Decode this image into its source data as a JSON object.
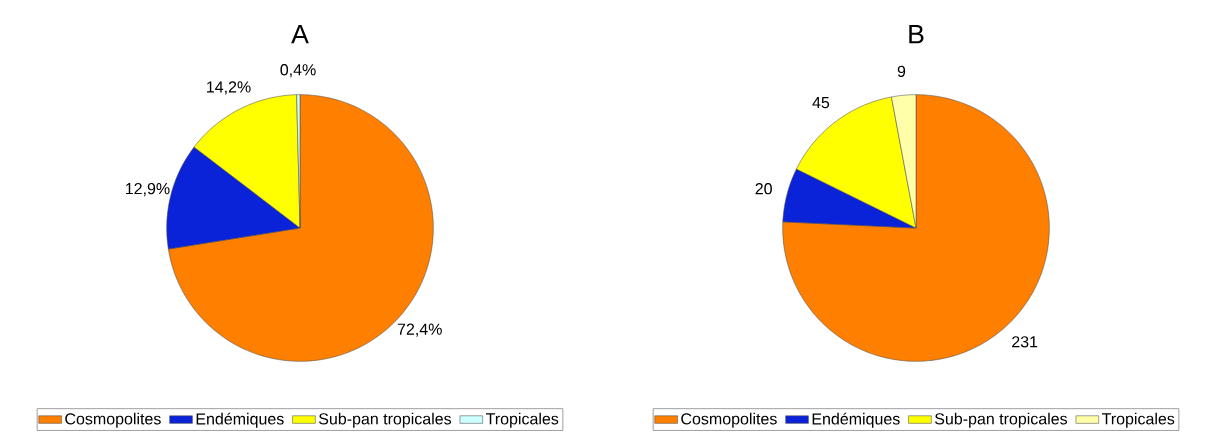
{
  "chart_data": [
    {
      "type": "pie",
      "title": "A",
      "categories": [
        "Cosmopolites",
        "Endémiques",
        "Sub-pan tropicales",
        "Tropicales"
      ],
      "values": [
        72.4,
        12.9,
        14.2,
        0.4
      ],
      "colors": [
        "#ff7f00",
        "#0a22d8",
        "#ffff00",
        "#ccffff"
      ],
      "value_labels": [
        "72,4%",
        "12,9%",
        "14,2%",
        "0,4%"
      ],
      "legend": "bottom"
    },
    {
      "type": "pie",
      "title": "B",
      "categories": [
        "Cosmopolites",
        "Endémiques",
        "Sub-pan tropicales",
        "Tropicales"
      ],
      "values": [
        231,
        20,
        45,
        9
      ],
      "colors": [
        "#ff7f00",
        "#0a22d8",
        "#ffff00",
        "#ffffaa"
      ],
      "value_labels": [
        "231",
        "20",
        "45",
        "9"
      ],
      "legend": "bottom"
    }
  ]
}
